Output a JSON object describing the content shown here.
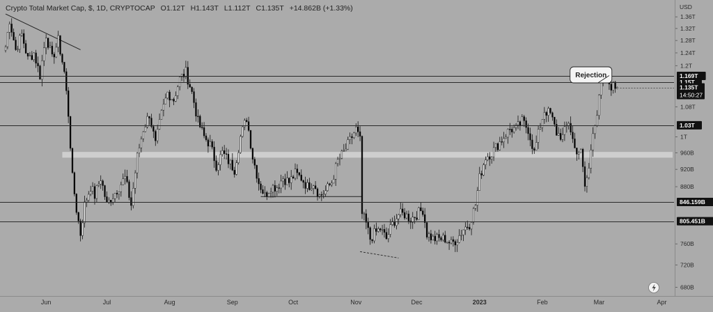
{
  "header": {
    "symbol": "Crypto Total Market Cap, $, 1D, CRYPTOCAP",
    "open": "O1.12T",
    "high": "H1.143T",
    "low": "L1.112T",
    "close": "C1.135T",
    "change": "+14.862B (+1.33%)"
  },
  "colors": {
    "background": "#ababab",
    "up": "#ffffff",
    "down": "#000000",
    "line": "#222222",
    "zone": "#d4d4d4"
  },
  "chart_data": {
    "type": "candlestick",
    "y_currency_label": "USD",
    "y_scale": "log",
    "ylim": [
      0.665,
      1.42
    ],
    "y_ticks": [
      {
        "v": 1.36,
        "label": "1.36T"
      },
      {
        "v": 1.32,
        "label": "1.32T"
      },
      {
        "v": 1.28,
        "label": "1.28T"
      },
      {
        "v": 1.24,
        "label": "1.24T"
      },
      {
        "v": 1.2,
        "label": "1.2T"
      },
      {
        "v": 1.08,
        "label": "1.08T"
      },
      {
        "v": 1.0,
        "label": "1T"
      },
      {
        "v": 0.96,
        "label": "960B"
      },
      {
        "v": 0.92,
        "label": "920B"
      },
      {
        "v": 0.88,
        "label": "880B"
      },
      {
        "v": 0.76,
        "label": "760B"
      },
      {
        "v": 0.72,
        "label": "720B"
      },
      {
        "v": 0.68,
        "label": "680B"
      }
    ],
    "x_labels": [
      {
        "day": 20,
        "label": "Jun",
        "bold": false
      },
      {
        "day": 50,
        "label": "Jul",
        "bold": false
      },
      {
        "day": 81,
        "label": "Aug",
        "bold": false
      },
      {
        "day": 112,
        "label": "Sep",
        "bold": false
      },
      {
        "day": 142,
        "label": "Oct",
        "bold": false
      },
      {
        "day": 173,
        "label": "Nov",
        "bold": false
      },
      {
        "day": 203,
        "label": "Dec",
        "bold": false
      },
      {
        "day": 234,
        "label": "2023",
        "bold": true
      },
      {
        "day": 265,
        "label": "Feb",
        "bold": false
      },
      {
        "day": 293,
        "label": "Mar",
        "bold": false
      },
      {
        "day": 324,
        "label": "Apr",
        "bold": false
      }
    ],
    "key_levels": [
      {
        "value": 1.169,
        "label": "1.169T"
      },
      {
        "value": 1.15,
        "label": "1.15T"
      },
      {
        "value": 1.03,
        "label": "1.03T"
      },
      {
        "value": 0.846159,
        "label": "846.159B"
      },
      {
        "value": 0.805451,
        "label": "805.451B"
      }
    ],
    "current_price": {
      "value": 1.135,
      "label": "1.135T",
      "countdown": "14:50:27"
    },
    "zone": {
      "low": 0.948,
      "high": 0.962
    },
    "annotation": {
      "text": "Rejection"
    },
    "close_path": [
      [
        0,
        1.26
      ],
      [
        2,
        1.35
      ],
      [
        5,
        1.25
      ],
      [
        8,
        1.3
      ],
      [
        11,
        1.22
      ],
      [
        14,
        1.24
      ],
      [
        17,
        1.17
      ],
      [
        20,
        1.3
      ],
      [
        23,
        1.22
      ],
      [
        26,
        1.28
      ],
      [
        29,
        1.18
      ],
      [
        31,
        1.06
      ],
      [
        33,
        0.9
      ],
      [
        35,
        0.83
      ],
      [
        37,
        0.78
      ],
      [
        39,
        0.84
      ],
      [
        42,
        0.88
      ],
      [
        44,
        0.86
      ],
      [
        47,
        0.9
      ],
      [
        50,
        0.84
      ],
      [
        53,
        0.86
      ],
      [
        56,
        0.88
      ],
      [
        59,
        0.9
      ],
      [
        62,
        0.84
      ],
      [
        65,
        0.95
      ],
      [
        68,
        1.02
      ],
      [
        71,
        1.06
      ],
      [
        74,
        0.98
      ],
      [
        77,
        1.06
      ],
      [
        80,
        1.12
      ],
      [
        83,
        1.1
      ],
      [
        86,
        1.16
      ],
      [
        89,
        1.18
      ],
      [
        92,
        1.12
      ],
      [
        95,
        1.04
      ],
      [
        98,
        1.0
      ],
      [
        101,
        0.98
      ],
      [
        104,
        0.93
      ],
      [
        107,
        0.96
      ],
      [
        110,
        0.94
      ],
      [
        113,
        0.92
      ],
      [
        116,
        1.0
      ],
      [
        119,
        1.05
      ],
      [
        122,
        0.95
      ],
      [
        125,
        0.89
      ],
      [
        128,
        0.86
      ],
      [
        131,
        0.88
      ],
      [
        134,
        0.88
      ],
      [
        137,
        0.9
      ],
      [
        140,
        0.89
      ],
      [
        143,
        0.91
      ],
      [
        146,
        0.9
      ],
      [
        149,
        0.88
      ],
      [
        152,
        0.89
      ],
      [
        155,
        0.86
      ],
      [
        158,
        0.87
      ],
      [
        161,
        0.89
      ],
      [
        164,
        0.94
      ],
      [
        167,
        0.96
      ],
      [
        170,
        0.99
      ],
      [
        173,
        1.02
      ],
      [
        175,
        0.99
      ],
      [
        176,
        0.82
      ],
      [
        178,
        0.8
      ],
      [
        180,
        0.77
      ],
      [
        182,
        0.78
      ],
      [
        185,
        0.79
      ],
      [
        188,
        0.77
      ],
      [
        191,
        0.8
      ],
      [
        194,
        0.82
      ],
      [
        197,
        0.82
      ],
      [
        200,
        0.81
      ],
      [
        203,
        0.82
      ],
      [
        206,
        0.83
      ],
      [
        208,
        0.78
      ],
      [
        211,
        0.77
      ],
      [
        214,
        0.77
      ],
      [
        217,
        0.77
      ],
      [
        220,
        0.76
      ],
      [
        223,
        0.77
      ],
      [
        226,
        0.79
      ],
      [
        229,
        0.8
      ],
      [
        232,
        0.84
      ],
      [
        234,
        0.9
      ],
      [
        237,
        0.95
      ],
      [
        240,
        0.96
      ],
      [
        243,
        0.98
      ],
      [
        246,
        1.0
      ],
      [
        249,
        1.02
      ],
      [
        252,
        1.02
      ],
      [
        255,
        1.04
      ],
      [
        258,
        1.02
      ],
      [
        261,
        0.96
      ],
      [
        264,
        1.03
      ],
      [
        266,
        1.07
      ],
      [
        269,
        1.06
      ],
      [
        272,
        1.01
      ],
      [
        275,
        1.0
      ],
      [
        278,
        1.04
      ],
      [
        281,
        0.97
      ],
      [
        284,
        0.96
      ],
      [
        286,
        0.88
      ],
      [
        288,
        0.92
      ],
      [
        290,
        1.02
      ],
      [
        292,
        1.06
      ],
      [
        294,
        1.14
      ],
      [
        296,
        1.16
      ],
      [
        299,
        1.14
      ],
      [
        302,
        1.135
      ]
    ]
  }
}
